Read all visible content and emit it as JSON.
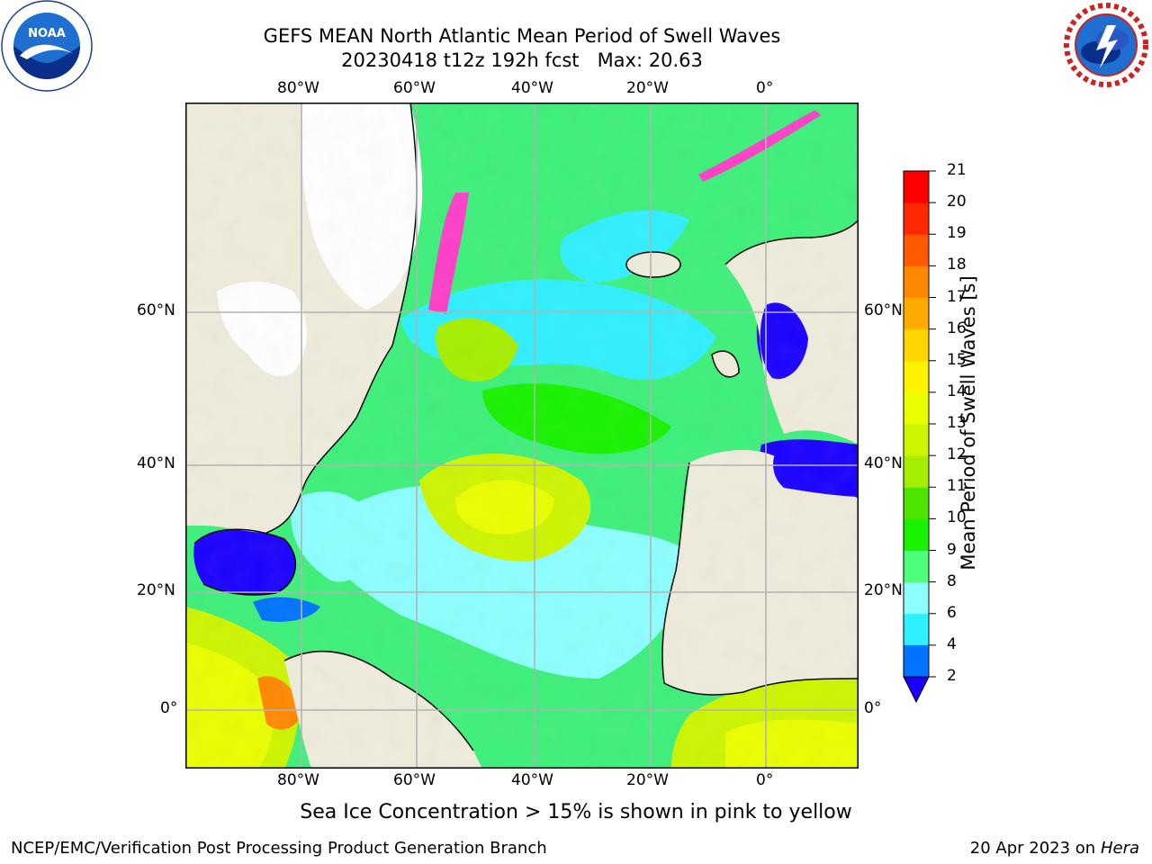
{
  "header": {
    "title_line1": "GEFS MEAN North Atlantic Mean Period of Swell Waves",
    "title_line2": "20230418 t12z 192h fcst   Max: 20.63"
  },
  "logos": {
    "left": {
      "icon": "noaa-logo",
      "text": "NOAA"
    },
    "right": {
      "icon": "national-weather-service-logo",
      "text": "NATIONAL WEATHER SERVICE"
    }
  },
  "map": {
    "lon_labels": [
      "80°W",
      "60°W",
      "40°W",
      "20°W",
      "0°"
    ],
    "lat_labels": [
      "60°N",
      "40°N",
      "20°N",
      "0°"
    ]
  },
  "colorbar": {
    "label": "Mean Period of Swell Waves [s]",
    "ticks": [
      "2",
      "4",
      "6",
      "8",
      "9",
      "10",
      "11",
      "12",
      "13",
      "14",
      "15",
      "16",
      "17",
      "18",
      "19",
      "20",
      "21"
    ],
    "colors": [
      "#0073ff",
      "#00cfff",
      "#2ff0ff",
      "#8cffff",
      "#4dff7a",
      "#17f200",
      "#4de400",
      "#a6ee00",
      "#cdf500",
      "#eaff00",
      "#fff200",
      "#ffd500",
      "#ffaa00",
      "#ff8800",
      "#ff5a00",
      "#ff2800",
      "#ff0000"
    ],
    "under_color": "#1a00ff"
  },
  "footer": {
    "note": "Sea Ice Concentration > 15% is shown in pink to yellow",
    "left": "NCEP/EMC/Verification Post Processing Product Generation Branch",
    "right_date": "20 Apr 2023 on ",
    "right_machine": "Hera"
  }
}
